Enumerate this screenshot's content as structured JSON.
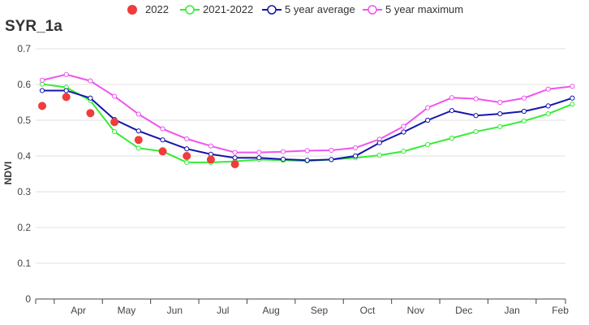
{
  "chart_data": {
    "type": "line",
    "title": "SYR_1a",
    "xlabel": "",
    "ylabel": "NDVI",
    "ylim": [
      0,
      0.7
    ],
    "yticks": [
      "0",
      "0.1",
      "0.2",
      "0.3",
      "0.4",
      "0.5",
      "0.6",
      "0.7"
    ],
    "month_labels": [
      "Apr",
      "May",
      "Jun",
      "Jul",
      "Aug",
      "Sep",
      "Oct",
      "Nov",
      "Dec",
      "Jan",
      "Feb"
    ],
    "grid": true,
    "legend_position": "top",
    "x_points": 23,
    "series": [
      {
        "name": "2022",
        "style": "scatter",
        "color": "#f03c3c",
        "values": [
          0.54,
          0.565,
          0.52,
          0.495,
          0.445,
          0.413,
          0.4,
          0.39,
          0.377
        ]
      },
      {
        "name": "2021-2022",
        "style": "line",
        "color": "#33ee33",
        "values": [
          0.601,
          0.592,
          0.555,
          0.468,
          0.422,
          0.413,
          0.382,
          0.382,
          0.385,
          0.39,
          0.388,
          0.386,
          0.39,
          0.395,
          0.402,
          0.413,
          0.432,
          0.45,
          0.468,
          0.482,
          0.498,
          0.518,
          0.545
        ]
      },
      {
        "name": "5 year average",
        "style": "line",
        "color": "#1515aa",
        "values": [
          0.583,
          0.583,
          0.562,
          0.502,
          0.47,
          0.445,
          0.42,
          0.405,
          0.395,
          0.395,
          0.391,
          0.388,
          0.39,
          0.4,
          0.437,
          0.467,
          0.5,
          0.527,
          0.513,
          0.518,
          0.525,
          0.54,
          0.562
        ]
      },
      {
        "name": "5 year maximum",
        "style": "line",
        "color": "#ee55ee",
        "values": [
          0.612,
          0.628,
          0.61,
          0.567,
          0.517,
          0.476,
          0.448,
          0.428,
          0.41,
          0.41,
          0.412,
          0.415,
          0.416,
          0.423,
          0.447,
          0.483,
          0.535,
          0.563,
          0.56,
          0.55,
          0.562,
          0.587,
          0.595
        ]
      }
    ]
  }
}
